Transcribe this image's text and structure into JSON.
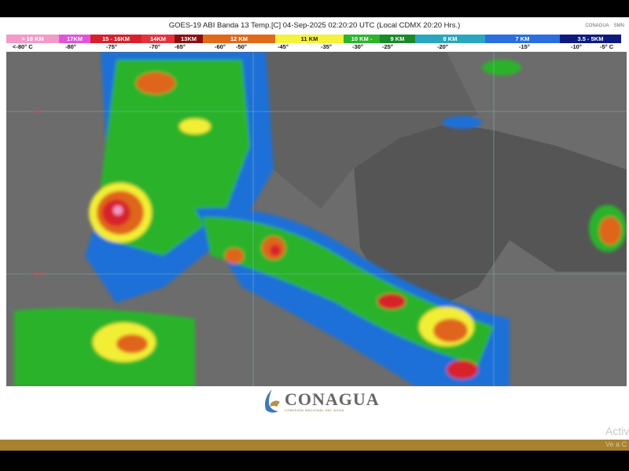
{
  "header": {
    "title": "GOES-19 ABI Banda 13 Temp.[C] 04-Sep-2025 02:20:20 UTC (Local CDMX  20:20 Hrs.)",
    "logos": [
      "CONAGUA",
      "SMN"
    ]
  },
  "legend": {
    "segments": [
      {
        "label": "> 18 KM",
        "color": "#f29ac8"
      },
      {
        "label": "17KM",
        "color": "#e055d8"
      },
      {
        "label": "15 - 16KM",
        "color": "#d8202a"
      },
      {
        "label": "14KM",
        "color": "#e5323a"
      },
      {
        "label": "13KM",
        "color": "#8a1010"
      },
      {
        "label": "12 KM",
        "color": "#e06a1a"
      },
      {
        "label": "11 KM",
        "color": "#f5f23a"
      },
      {
        "label": "10 KM -",
        "color": "#2cb52c"
      },
      {
        "label": "9 KM",
        "color": "#1a8a2a"
      },
      {
        "label": "8 KM",
        "color": "#2aa6c0"
      },
      {
        "label": "7 KM",
        "color": "#2a6ee0"
      },
      {
        "label": "3.5 - 5KM",
        "color": "#0c1a80"
      }
    ],
    "temps": [
      "<-80° C",
      "-80°",
      "-75°",
      "-70°",
      "-65°",
      "-60°",
      "-50°",
      "-45°",
      "-35°",
      "-30°",
      "-25°",
      "-20°",
      "-15°",
      "-10°",
      "-5° C"
    ]
  },
  "map": {
    "lat_labels": [
      "+30°",
      "+20°"
    ]
  },
  "footer": {
    "brand": "CONAGUA",
    "brand_sub": "COMISIÓN NACIONAL DEL AGUA",
    "activate": "Activ",
    "activate_sub": "Ve a C"
  }
}
